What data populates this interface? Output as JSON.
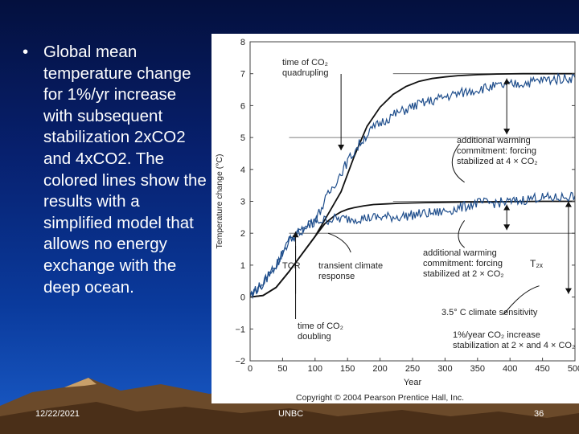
{
  "slide": {
    "bullet_symbol": "•",
    "bullet_text": "Global mean temperature change for 1%/yr increase with subsequent stabilization 2xCO2 and 4xCO2. The colored lines show the results with a simplified model that allows no energy exchange with the deep ocean.",
    "footer_date": "12/22/2021",
    "footer_center": "UNBC",
    "footer_page": "36",
    "background_top": "#04103e",
    "background_bottom": "#1a5cc8"
  },
  "chart_data": {
    "type": "line",
    "xlabel": "Year",
    "ylabel": "Temperature change (°C)",
    "xlim": [
      0,
      500
    ],
    "ylim": [
      -2,
      8
    ],
    "xticks": [
      0,
      50,
      100,
      150,
      200,
      250,
      300,
      350,
      400,
      450,
      500
    ],
    "yticks": [
      -2,
      -1,
      0,
      1,
      2,
      3,
      4,
      5,
      6,
      7,
      8
    ],
    "copyright": "Copyright © 2004 Pearson Prentice Hall, Inc.",
    "series": [
      {
        "style": "smooth",
        "color": "#111111",
        "x": [
          0,
          20,
          40,
          60,
          80,
          100,
          115,
          130,
          140,
          150,
          160,
          175,
          190,
          210,
          230,
          250,
          270,
          300,
          330,
          360,
          400,
          450,
          500
        ],
        "y": [
          0,
          0.05,
          0.3,
          0.8,
          1.35,
          1.9,
          2.3,
          2.55,
          2.67,
          2.75,
          2.8,
          2.86,
          2.9,
          2.92,
          2.94,
          2.95,
          2.96,
          2.97,
          2.98,
          2.98,
          2.99,
          3.0,
          3.0
        ]
      },
      {
        "style": "smooth",
        "color": "#111111",
        "x": [
          0,
          20,
          40,
          60,
          80,
          100,
          120,
          140,
          160,
          180,
          200,
          220,
          240,
          260,
          280,
          300,
          320,
          350,
          380,
          420,
          460,
          500
        ],
        "y": [
          0,
          0.05,
          0.3,
          0.8,
          1.35,
          1.9,
          2.6,
          3.3,
          4.4,
          5.35,
          5.95,
          6.35,
          6.6,
          6.76,
          6.85,
          6.9,
          6.94,
          6.97,
          6.99,
          7.0,
          7.0,
          7.0
        ]
      },
      {
        "style": "noisy",
        "color": "#1f4e8c",
        "x": [
          0,
          10,
          20,
          30,
          40,
          50,
          60,
          70,
          80,
          90,
          100,
          110,
          120,
          130,
          140,
          150,
          170,
          200,
          230,
          260,
          290,
          320,
          350,
          380,
          410,
          440,
          470,
          500
        ],
        "y": [
          0.05,
          0.25,
          0.4,
          0.75,
          1.0,
          1.4,
          1.75,
          1.95,
          2.1,
          2.25,
          2.4,
          2.4,
          2.42,
          2.45,
          2.45,
          2.45,
          2.47,
          2.5,
          2.52,
          2.6,
          2.65,
          2.78,
          2.95,
          2.95,
          3.0,
          3.12,
          3.1,
          3.18
        ]
      },
      {
        "style": "noisy",
        "color": "#1f4e8c",
        "x": [
          0,
          10,
          20,
          30,
          40,
          50,
          60,
          70,
          80,
          90,
          100,
          110,
          120,
          130,
          140,
          150,
          160,
          170,
          180,
          190,
          200,
          220,
          240,
          260,
          280,
          300,
          330,
          360,
          390,
          420,
          450,
          480,
          500
        ],
        "y": [
          0.05,
          0.25,
          0.4,
          0.75,
          1.0,
          1.4,
          1.75,
          1.95,
          2.1,
          2.25,
          2.4,
          2.8,
          3.2,
          3.55,
          3.9,
          4.25,
          4.55,
          4.85,
          5.1,
          5.3,
          5.45,
          5.7,
          5.88,
          6.05,
          6.15,
          6.28,
          6.42,
          6.55,
          6.63,
          6.7,
          6.8,
          6.85,
          6.88
        ]
      }
    ],
    "annotations": [
      {
        "id": "time_quad",
        "lines": [
          "time of CO₂",
          "quadrupling"
        ]
      },
      {
        "id": "warming_4x",
        "lines": [
          "additional warming",
          "commitment: forcing",
          "stabilized at 4 × CO₂"
        ]
      },
      {
        "id": "warming_2x",
        "lines": [
          "additional warming",
          "commitment: forcing",
          "stabilized at 2 × CO₂"
        ]
      },
      {
        "id": "tcr",
        "lines": [
          "TCR"
        ]
      },
      {
        "id": "transient",
        "lines": [
          "transient climate",
          "response"
        ]
      },
      {
        "id": "t2x",
        "lines": [
          "T₂ₓ"
        ]
      },
      {
        "id": "sensitivity",
        "lines": [
          "3.5° C climate sensitivity"
        ]
      },
      {
        "id": "time_double",
        "lines": [
          "time of CO₂",
          "doubling"
        ]
      },
      {
        "id": "increase",
        "lines": [
          "1%/year CO₂ increase",
          "stabilization at 2 × and 4 × CO₂"
        ]
      }
    ]
  }
}
